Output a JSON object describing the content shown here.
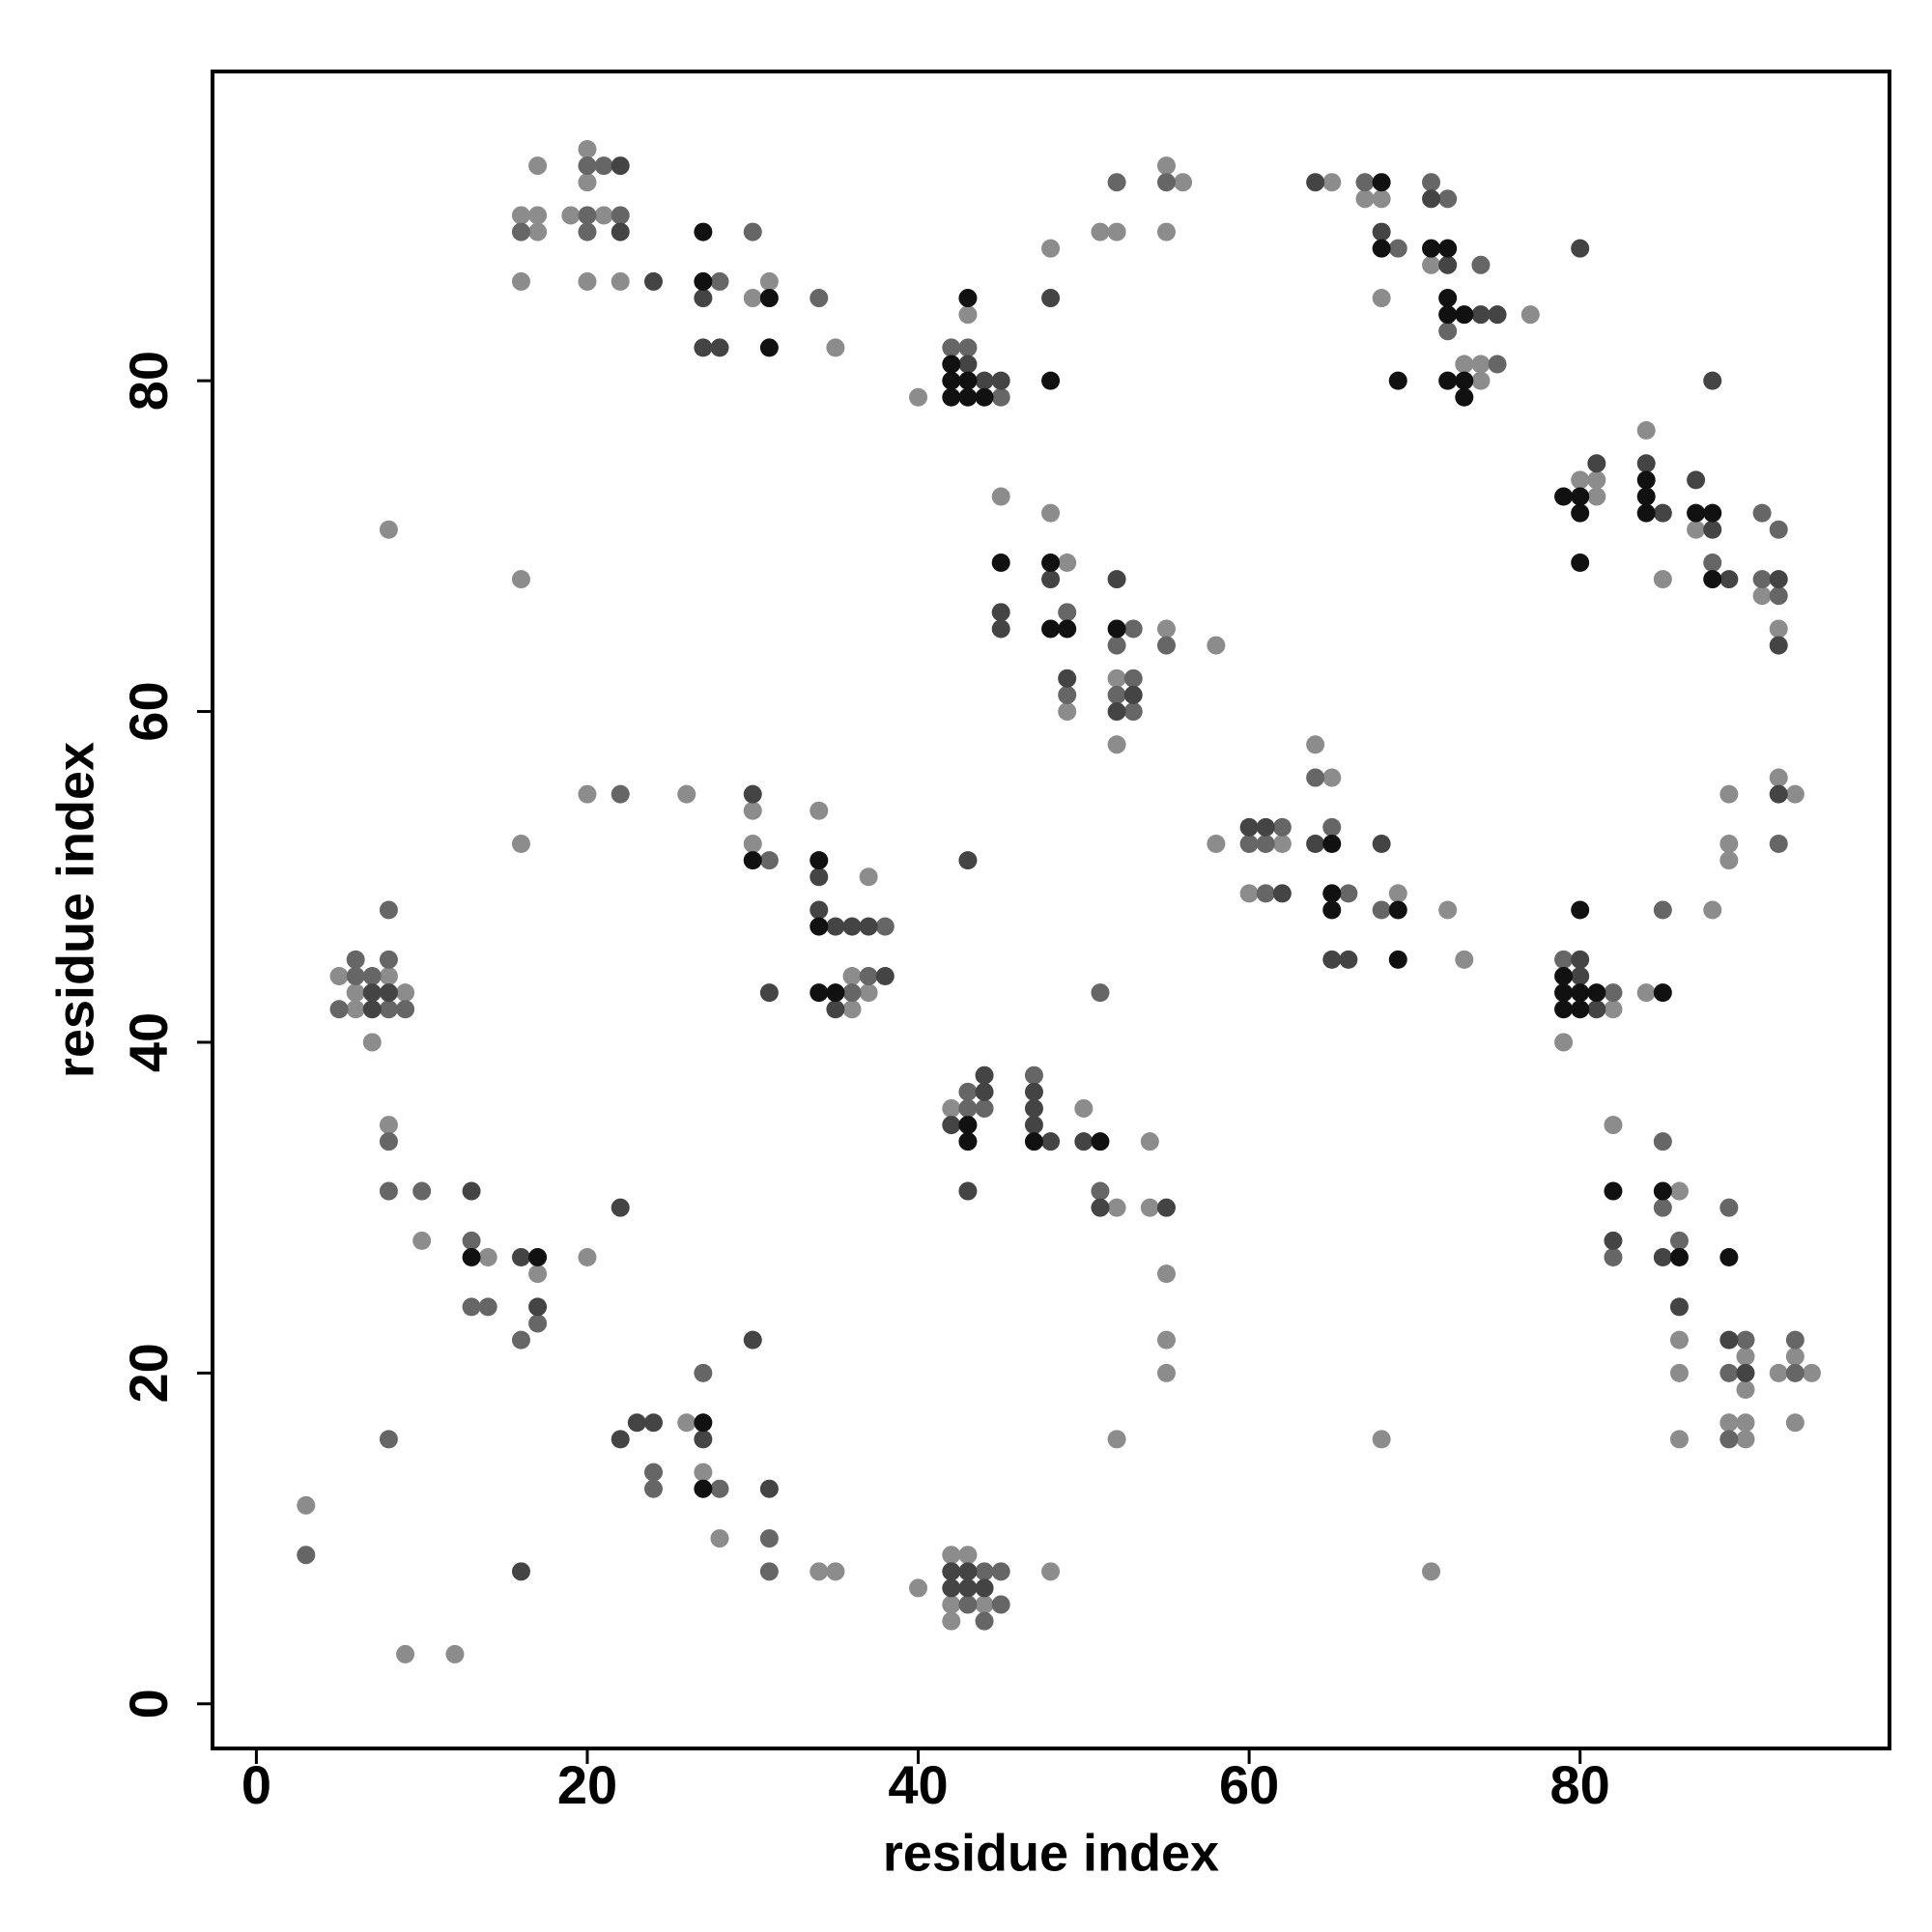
{
  "chart_data": {
    "type": "scatter",
    "xlabel": "residue index",
    "ylabel": "residue index",
    "xlim": [
      -2.65,
      98.7
    ],
    "ylim": [
      -2.7,
      98.7
    ],
    "xticks": [
      0,
      20,
      40,
      60,
      80
    ],
    "yticks": [
      0,
      20,
      40,
      60,
      80
    ],
    "grid": false,
    "series": [
      {
        "color": "#8c8c8c",
        "x": [
          16,
          16,
          17,
          17,
          17,
          19,
          20,
          20,
          21,
          20,
          22,
          30,
          31,
          35,
          43,
          40,
          48,
          51,
          52,
          55,
          56,
          55,
          65,
          67,
          68,
          68,
          71,
          77,
          73,
          74,
          74,
          84,
          80,
          81,
          81,
          87,
          85,
          91,
          92,
          45,
          48,
          49,
          49,
          52,
          52,
          55,
          58,
          8,
          16,
          16,
          20,
          26,
          30,
          30,
          34,
          37,
          36,
          37,
          36,
          5,
          8,
          6,
          9,
          6,
          7,
          64,
          65,
          62,
          58,
          60,
          69,
          72,
          73,
          82,
          79,
          84,
          88,
          92,
          89,
          93,
          89,
          89,
          42,
          50,
          54,
          52,
          54,
          55,
          55,
          55,
          52,
          8,
          10,
          14,
          17,
          20,
          26,
          27,
          28,
          34,
          35,
          3,
          9,
          12,
          42,
          43,
          40,
          42,
          44,
          42,
          48,
          68,
          71,
          82,
          86,
          86,
          86,
          86,
          90,
          90,
          92,
          93,
          94,
          89,
          90,
          90,
          93
        ],
        "y": [
          86,
          90,
          89,
          90,
          93,
          90,
          94,
          92,
          90,
          86,
          86,
          85,
          86,
          82,
          84,
          79,
          88,
          89,
          89,
          93,
          92,
          89,
          92,
          91,
          91,
          85,
          87,
          84,
          81,
          81,
          80,
          77,
          74,
          74,
          73,
          71,
          68,
          67,
          65,
          73,
          72,
          69,
          60,
          62,
          58,
          65,
          64,
          71,
          68,
          52,
          55,
          55,
          54,
          52,
          54,
          50,
          44,
          43,
          42,
          44,
          44,
          43,
          43,
          42,
          40,
          58,
          56,
          52,
          52,
          49,
          49,
          48,
          45,
          42,
          40,
          43,
          48,
          56,
          55,
          55,
          52,
          51,
          36,
          36,
          34,
          30,
          30,
          26,
          22,
          20,
          16,
          35,
          28,
          27,
          26,
          27,
          17,
          14,
          10,
          8,
          8,
          12,
          3,
          3,
          9,
          9,
          7,
          6,
          6,
          5,
          8,
          16,
          8,
          35,
          31,
          22,
          20,
          16,
          21,
          19,
          20,
          21,
          20,
          17,
          17,
          16,
          17
        ]
      },
      {
        "color": "#666666",
        "x": [
          16,
          20,
          20,
          20,
          21,
          22,
          28,
          30,
          34,
          42,
          43,
          52,
          55,
          67,
          69,
          71,
          72,
          72,
          75,
          74,
          88,
          91,
          92,
          91,
          92,
          52,
          53,
          49,
          49,
          53,
          52,
          53,
          55,
          22,
          31,
          38,
          37,
          36,
          8,
          6,
          8,
          6,
          7,
          5,
          8,
          9,
          64,
          62,
          60,
          61,
          65,
          61,
          66,
          68,
          79,
          82,
          85,
          92,
          51,
          43,
          43,
          44,
          47,
          51,
          8,
          8,
          10,
          13,
          13,
          14,
          17,
          16,
          27,
          24,
          24,
          28,
          31,
          31,
          8,
          3,
          44,
          45,
          43,
          45,
          44,
          85,
          85,
          82,
          86,
          89,
          90,
          89,
          93,
          93,
          89,
          45
        ],
        "y": [
          89,
          93,
          90,
          89,
          93,
          90,
          86,
          89,
          85,
          82,
          82,
          92,
          92,
          92,
          88,
          92,
          91,
          83,
          81,
          87,
          69,
          72,
          71,
          68,
          67,
          64,
          65,
          61,
          66,
          62,
          61,
          60,
          64,
          55,
          51,
          47,
          44,
          43,
          48,
          45,
          45,
          44,
          44,
          42,
          42,
          42,
          56,
          53,
          52,
          52,
          53,
          49,
          49,
          48,
          45,
          43,
          48,
          52,
          43,
          37,
          36,
          36,
          38,
          31,
          34,
          31,
          31,
          28,
          24,
          24,
          23,
          22,
          20,
          14,
          13,
          13,
          10,
          8,
          16,
          9,
          8,
          8,
          6,
          6,
          5,
          34,
          30,
          27,
          28,
          30,
          22,
          20,
          22,
          20,
          16,
          79
        ]
      },
      {
        "color": "#444444",
        "x": [
          22,
          22,
          24,
          27,
          27,
          28,
          43,
          44,
          45,
          48,
          64,
          68,
          71,
          72,
          74,
          75,
          88,
          80,
          81,
          84,
          85,
          87,
          88,
          89,
          92,
          92,
          48,
          45,
          45,
          52,
          49,
          53,
          52,
          30,
          34,
          34,
          35,
          36,
          37,
          38,
          31,
          35,
          43,
          7,
          8,
          7,
          60,
          61,
          64,
          68,
          62,
          65,
          66,
          80,
          80,
          81,
          92,
          44,
          44,
          47,
          47,
          42,
          47,
          48,
          50,
          43,
          51,
          55,
          13,
          16,
          17,
          22,
          30,
          23,
          24,
          22,
          27,
          31,
          16,
          42,
          43,
          42,
          43,
          44,
          82,
          85,
          86,
          89,
          90
        ],
        "y": [
          93,
          89,
          86,
          85,
          82,
          82,
          81,
          80,
          80,
          85,
          92,
          89,
          91,
          87,
          84,
          84,
          80,
          88,
          75,
          75,
          72,
          74,
          71,
          68,
          68,
          64,
          68,
          66,
          65,
          68,
          62,
          61,
          60,
          55,
          50,
          48,
          47,
          47,
          47,
          44,
          43,
          42,
          51,
          43,
          43,
          42,
          53,
          53,
          52,
          52,
          49,
          45,
          45,
          45,
          44,
          42,
          55,
          38,
          37,
          37,
          36,
          35,
          35,
          34,
          34,
          31,
          30,
          30,
          31,
          27,
          24,
          30,
          22,
          17,
          17,
          16,
          16,
          13,
          8,
          8,
          8,
          7,
          7,
          7,
          28,
          27,
          24,
          22,
          20
        ]
      },
      {
        "color": "#111111",
        "x": [
          27,
          27,
          31,
          31,
          43,
          42,
          42,
          43,
          42,
          43,
          44,
          48,
          68,
          68,
          71,
          72,
          72,
          72,
          73,
          73,
          72,
          73,
          69,
          84,
          79,
          80,
          84,
          80,
          84,
          87,
          88,
          88,
          80,
          45,
          48,
          48,
          49,
          52,
          30,
          34,
          34,
          34,
          35,
          65,
          65,
          65,
          69,
          69,
          80,
          79,
          79,
          80,
          81,
          79,
          80,
          85,
          43,
          43,
          47,
          51,
          13,
          17,
          27,
          27,
          82,
          85,
          86,
          89
        ],
        "y": [
          89,
          86,
          85,
          82,
          85,
          81,
          80,
          80,
          79,
          79,
          79,
          80,
          92,
          88,
          88,
          88,
          85,
          84,
          84,
          80,
          80,
          79,
          80,
          74,
          73,
          73,
          73,
          72,
          72,
          72,
          72,
          68,
          69,
          69,
          69,
          65,
          65,
          65,
          51,
          51,
          47,
          43,
          43,
          52,
          49,
          48,
          48,
          45,
          48,
          44,
          43,
          43,
          43,
          42,
          42,
          43,
          35,
          34,
          34,
          34,
          27,
          27,
          17,
          13,
          31,
          31,
          27,
          27
        ]
      }
    ]
  }
}
